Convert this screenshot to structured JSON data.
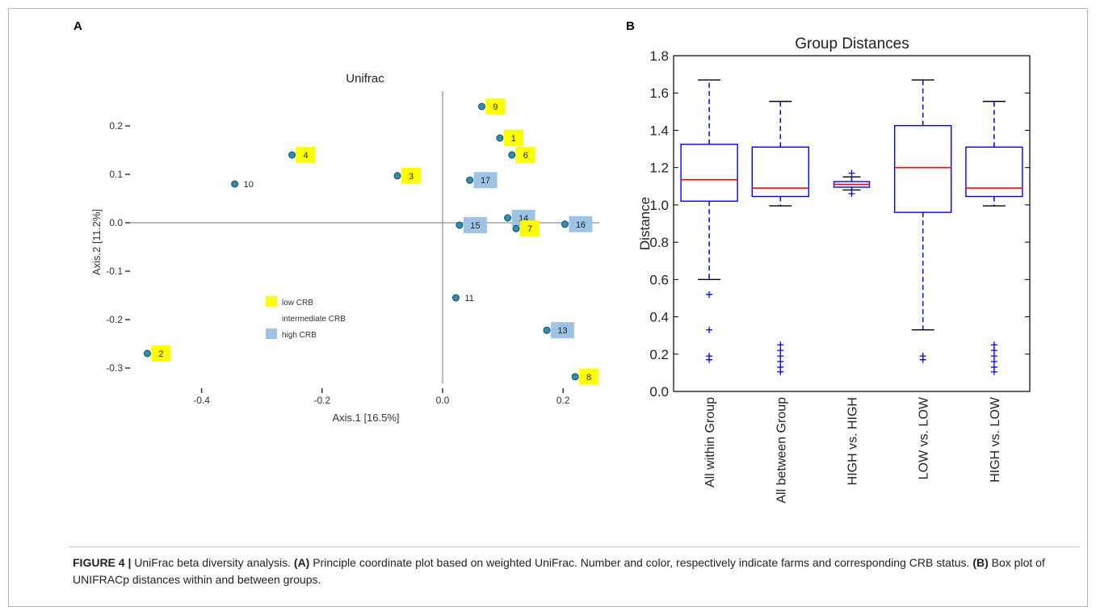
{
  "panels": {
    "a_letter": "A",
    "b_letter": "B"
  },
  "caption": {
    "figure_label": "FIGURE 4 |",
    "text1": " UniFrac beta diversity analysis. ",
    "a_ref": "(A)",
    "text2": " Principle coordinate plot based on weighted UniFrac. Number and color, respectively indicate farms and corresponding CRB status. ",
    "b_ref": "(B)",
    "text3": " Box plot of UNIFRACp distances within and between groups."
  },
  "colors": {
    "low": "#ffff00",
    "high": "#9dc3e6",
    "point": "#2e8fb3",
    "box": "#0000ff",
    "median": "#ff0000"
  },
  "chart_data": [
    {
      "type": "scatter",
      "title": "Unifrac",
      "xlabel": "Axis.1   [16.5%]",
      "ylabel": "Axis.2   [11.2%]",
      "xlim": [
        -0.55,
        0.27
      ],
      "ylim": [
        -0.33,
        0.28
      ],
      "xticks": [
        -0.4,
        -0.2,
        0.0,
        0.2
      ],
      "xtick_labels": [
        "-0.4",
        "-0.2",
        "0.0",
        "0.2"
      ],
      "yticks": [
        0.2,
        0.1,
        0.0,
        -0.1,
        -0.2,
        -0.3
      ],
      "ytick_labels": [
        "0.2",
        "0.1",
        "0.0",
        "-0.1",
        "-0.2",
        "-0.3"
      ],
      "legend": {
        "position": "center-left",
        "entries": [
          {
            "label": "low CRB",
            "group": "low"
          },
          {
            "label": "intermediate CRB",
            "group": "intermediate"
          },
          {
            "label": "high CRB",
            "group": "high"
          }
        ]
      },
      "points": [
        {
          "label": "9",
          "x": 0.065,
          "y": 0.24,
          "group": "low"
        },
        {
          "label": "1",
          "x": 0.095,
          "y": 0.175,
          "group": "low"
        },
        {
          "label": "6",
          "x": 0.115,
          "y": 0.14,
          "group": "low"
        },
        {
          "label": "4",
          "x": -0.25,
          "y": 0.14,
          "group": "low"
        },
        {
          "label": "3",
          "x": -0.075,
          "y": 0.097,
          "group": "low"
        },
        {
          "label": "10",
          "x": -0.345,
          "y": 0.08,
          "group": "intermediate"
        },
        {
          "label": "17",
          "x": 0.045,
          "y": 0.088,
          "group": "high"
        },
        {
          "label": "14",
          "x": 0.108,
          "y": 0.01,
          "group": "high"
        },
        {
          "label": "15",
          "x": 0.028,
          "y": -0.005,
          "group": "high"
        },
        {
          "label": "7",
          "x": 0.122,
          "y": -0.012,
          "group": "low"
        },
        {
          "label": "16",
          "x": 0.203,
          "y": -0.003,
          "group": "high"
        },
        {
          "label": "11",
          "x": 0.022,
          "y": -0.155,
          "group": "intermediate"
        },
        {
          "label": "13",
          "x": 0.173,
          "y": -0.222,
          "group": "high"
        },
        {
          "label": "2",
          "x": -0.49,
          "y": -0.27,
          "group": "low"
        },
        {
          "label": "8",
          "x": 0.22,
          "y": -0.318,
          "group": "low"
        }
      ]
    },
    {
      "type": "box",
      "title": "Group Distances",
      "ylabel": "Distance",
      "xlabel": "",
      "ylim": [
        0.0,
        1.8
      ],
      "yticks": [
        0.0,
        0.2,
        0.4,
        0.6,
        0.8,
        1.0,
        1.2,
        1.4,
        1.6,
        1.8
      ],
      "ytick_labels": [
        "0.0",
        "0.2",
        "0.4",
        "0.6",
        "0.8",
        "1.0",
        "1.2",
        "1.4",
        "1.6",
        "1.8"
      ],
      "categories": [
        "All within Group",
        "All between Group",
        "HIGH vs. HIGH",
        "LOW vs. LOW",
        "HIGH vs. LOW"
      ],
      "boxes": [
        {
          "q1": 1.02,
          "median": 1.135,
          "q3": 1.325,
          "whisker_low": 0.6,
          "whisker_high": 1.67,
          "outliers": [
            0.52,
            0.33,
            0.19,
            0.17
          ]
        },
        {
          "q1": 1.045,
          "median": 1.09,
          "q3": 1.31,
          "whisker_low": 0.995,
          "whisker_high": 1.555,
          "outliers": [
            0.25,
            0.22,
            0.19,
            0.16,
            0.13,
            0.105
          ]
        },
        {
          "q1": 1.095,
          "median": 1.11,
          "q3": 1.125,
          "whisker_low": 1.08,
          "whisker_high": 1.15,
          "outliers": [
            1.17,
            1.06
          ]
        },
        {
          "q1": 0.96,
          "median": 1.2,
          "q3": 1.425,
          "whisker_low": 0.33,
          "whisker_high": 1.67,
          "outliers": [
            0.19,
            0.17
          ]
        },
        {
          "q1": 1.045,
          "median": 1.09,
          "q3": 1.31,
          "whisker_low": 0.995,
          "whisker_high": 1.555,
          "outliers": [
            0.25,
            0.22,
            0.19,
            0.16,
            0.13,
            0.105
          ]
        }
      ]
    }
  ]
}
